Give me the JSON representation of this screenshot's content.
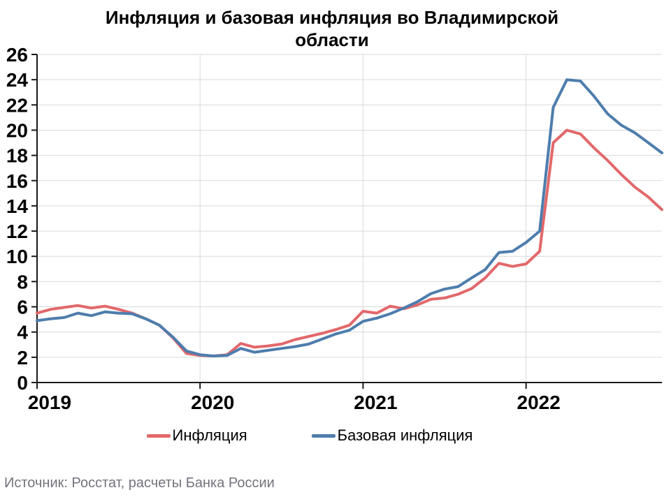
{
  "title": "Инфляция и базовая инфляция во Владимирской области",
  "title_lines": [
    "Инфляция и базовая инфляция во Владимирской",
    "области"
  ],
  "source": "Источник: Росстат, расчеты Банка России",
  "colors": {
    "inflation_red": "#E2686B",
    "core_inflation_blue": "#4E7DAD",
    "gridline": "#D9D9D9",
    "axis": "#1A1A1A",
    "source_text": "#73737D"
  },
  "chart_data": {
    "type": "line",
    "title": "Инфляция и базовая инфляция во Владимирской области",
    "x_unit": "month",
    "x_start": "2019-01",
    "x_end": "2022-11",
    "x_tick_labels": [
      "2019",
      "2020",
      "2021",
      "2022"
    ],
    "x_tick_month_indices": [
      0,
      12,
      24,
      36
    ],
    "ylim": [
      0,
      26
    ],
    "y_tick_step": 2,
    "grid": true,
    "legend_position": "bottom",
    "series": [
      {
        "name": "Инфляция",
        "color": "#E2686B",
        "values": [
          5.5,
          5.8,
          5.95,
          6.1,
          5.9,
          6.05,
          5.8,
          5.5,
          5.05,
          4.55,
          3.55,
          2.3,
          2.15,
          2.1,
          2.2,
          3.1,
          2.8,
          2.9,
          3.05,
          3.4,
          3.65,
          3.9,
          4.2,
          4.55,
          5.65,
          5.5,
          6.05,
          5.85,
          6.15,
          6.6,
          6.7,
          7.0,
          7.45,
          8.3,
          9.45,
          9.2,
          9.4,
          10.4,
          19.0,
          20.0,
          19.7,
          18.6,
          17.6,
          16.5,
          15.5,
          14.7,
          13.7
        ]
      },
      {
        "name": "Базовая инфляция",
        "color": "#4E7DAD",
        "values": [
          4.9,
          5.05,
          5.15,
          5.5,
          5.3,
          5.6,
          5.5,
          5.45,
          5.05,
          4.55,
          3.6,
          2.5,
          2.2,
          2.1,
          2.15,
          2.7,
          2.4,
          2.55,
          2.7,
          2.85,
          3.05,
          3.45,
          3.85,
          4.15,
          4.85,
          5.1,
          5.45,
          5.9,
          6.4,
          7.05,
          7.4,
          7.6,
          8.3,
          8.95,
          10.3,
          10.4,
          11.1,
          12.0,
          21.8,
          24.0,
          23.9,
          22.7,
          21.3,
          20.4,
          19.8,
          19.0,
          18.2
        ]
      }
    ]
  }
}
